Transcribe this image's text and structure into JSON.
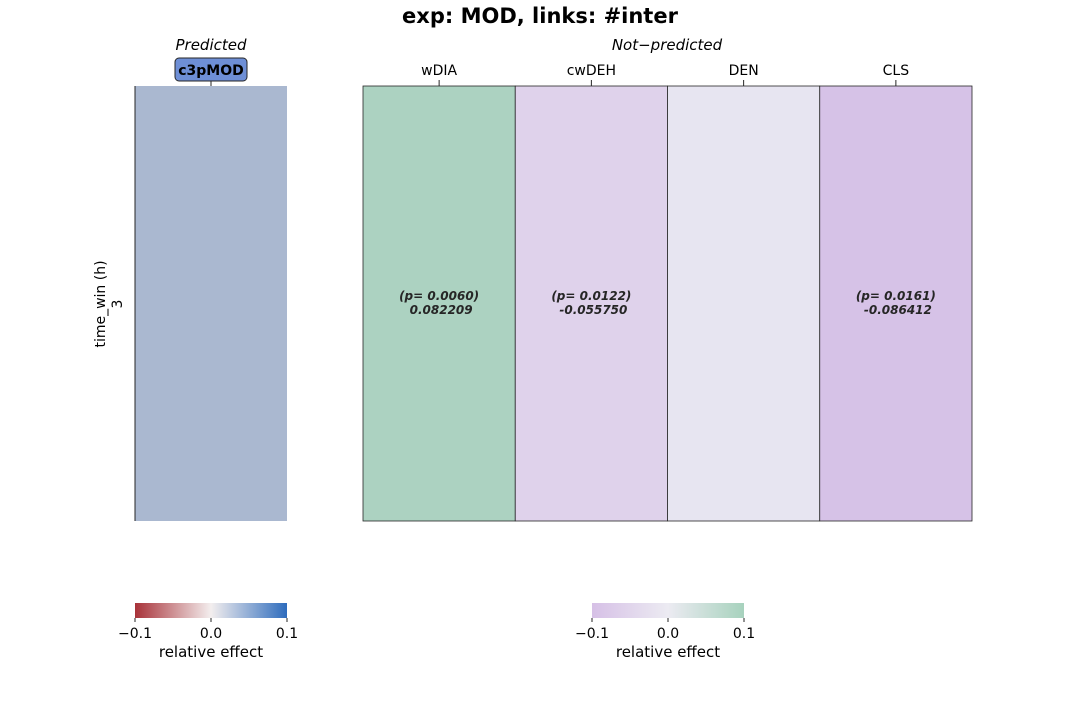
{
  "chart_data": [
    {
      "type": "heatmap",
      "title": "exp: MOD, links: #inter",
      "panel_title": "Predicted",
      "ylabel": "time_win (h)",
      "rows": [
        "3"
      ],
      "columns": [
        "c3pMOD"
      ],
      "highlight_column": "c3pMOD",
      "values": [
        [
          0.015
        ]
      ],
      "annotations": [
        [
          ""
        ]
      ],
      "vlim": [
        -0.1,
        0.1
      ],
      "colorbar": {
        "label": "relative effect",
        "ticks": [
          "−0.1",
          "0.0",
          "0.1"
        ],
        "colors": {
          "low": "#a83239",
          "mid": "#f3eeee",
          "high": "#2e6cbd"
        }
      },
      "cell_color": "#aab8d0"
    },
    {
      "type": "heatmap",
      "panel_title": "Not−predicted",
      "rows": [
        "3"
      ],
      "columns": [
        "wDIA",
        "cwDEH",
        "DEN",
        "CLS"
      ],
      "values": [
        [
          0.082209,
          -0.05575,
          0.0,
          -0.086412
        ]
      ],
      "annotations": [
        [
          "(p= 0.0060)",
          "0.082209"
        ],
        [
          "(p= 0.0122)",
          "-0.055750"
        ],
        [
          "",
          ""
        ],
        [
          "(p= 0.0161)",
          "-0.086412"
        ]
      ],
      "vlim": [
        -0.1,
        0.1
      ],
      "colorbar": {
        "label": "relative effect",
        "ticks": [
          "−0.1",
          "0.0",
          "0.1"
        ],
        "colors": {
          "low": "#d6c0e6",
          "mid": "#ecebf2",
          "high": "#a7d2bd"
        }
      },
      "cell_colors": [
        "#acd2c1",
        "#dfd2eb",
        "#e7e5f1",
        "#d6c2e7"
      ]
    }
  ]
}
